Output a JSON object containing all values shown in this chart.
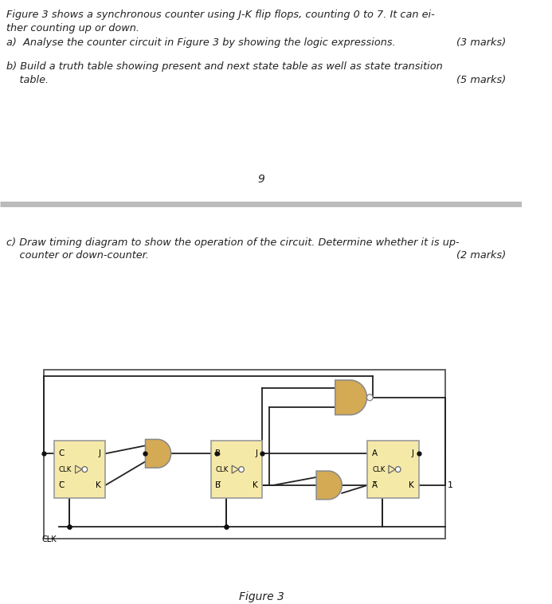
{
  "bg_color": "#ffffff",
  "text_color": "#222222",
  "line1": "Figure 3 shows a synchronous counter using J-K flip flops, counting 0 to 7. It can ei-",
  "line2": "ther counting up or down.",
  "line3a": "a)  Analyse the counter circuit in Figure 3 by showing the logic expressions.",
  "line3b": "(3 marks)",
  "line4a": "b) Build a truth table showing present and next state table as well as state transition",
  "line4b": "    table.",
  "line4c": "(5 marks)",
  "page_num": "9",
  "line5a": "c) Draw timing diagram to show the operation of the circuit. Determine whether it is up-",
  "line5b": "    counter or down-counter.",
  "line5c": "(2 marks)",
  "figure_label": "Figure 3",
  "ff_fill": "#f5e9a8",
  "ff_edge": "#999999",
  "gate_fill": "#d4aa55",
  "gate_edge": "#888888",
  "separator_color": "#bbbbbb",
  "wire_color": "#222222",
  "dot_color": "#111111",
  "bubble_fill": "#ffffff"
}
